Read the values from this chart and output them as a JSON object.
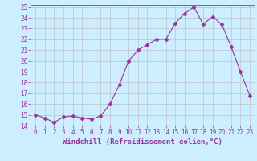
{
  "x": [
    0,
    1,
    2,
    3,
    4,
    5,
    6,
    7,
    8,
    9,
    10,
    11,
    12,
    13,
    14,
    15,
    16,
    17,
    18,
    19,
    20,
    21,
    22,
    23
  ],
  "y": [
    15.0,
    14.7,
    14.3,
    14.8,
    14.9,
    14.7,
    14.6,
    14.9,
    16.0,
    17.8,
    20.0,
    21.0,
    21.5,
    22.0,
    22.0,
    23.5,
    24.4,
    25.0,
    23.4,
    24.1,
    23.4,
    21.3,
    19.0,
    16.8
  ],
  "xlabel": "Windchill (Refroidissement éolien,°C)",
  "ylim": [
    14,
    25
  ],
  "xlim": [
    -0.5,
    23.5
  ],
  "yticks": [
    14,
    15,
    16,
    17,
    18,
    19,
    20,
    21,
    22,
    23,
    24,
    25
  ],
  "xticks": [
    0,
    1,
    2,
    3,
    4,
    5,
    6,
    7,
    8,
    9,
    10,
    11,
    12,
    13,
    14,
    15,
    16,
    17,
    18,
    19,
    20,
    21,
    22,
    23
  ],
  "line_color": "#993399",
  "marker": "D",
  "marker_size": 2.5,
  "bg_color": "#cceeff",
  "grid_color": "#bbbbbb",
  "tick_fontsize": 5.5,
  "xlabel_fontsize": 6.5
}
